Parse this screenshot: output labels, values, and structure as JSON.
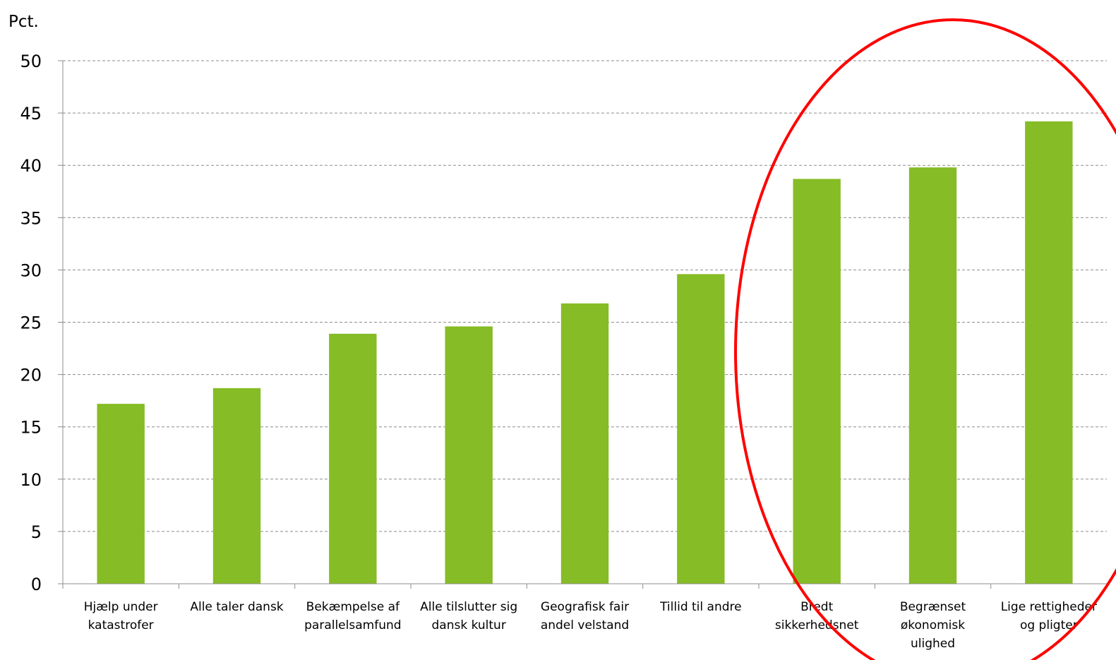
{
  "chart_data": {
    "type": "bar",
    "ylabel": "Pct.",
    "xlabel": "",
    "title": "",
    "ylim": [
      0,
      50
    ],
    "yticks": [
      0,
      5,
      10,
      15,
      20,
      25,
      30,
      35,
      40,
      45,
      50
    ],
    "grid": "horizontal dashed",
    "categories": [
      [
        "Hjælp under",
        "katastrofer"
      ],
      [
        "Alle taler dansk"
      ],
      [
        "Bekæmpelse af",
        "parallelsamfund"
      ],
      [
        "Alle tilslutter sig",
        "dansk kultur"
      ],
      [
        "Geografisk fair",
        "andel velstand"
      ],
      [
        "Tillid til andre"
      ],
      [
        "Bredt",
        "sikkerhedsnet"
      ],
      [
        "Begrænset",
        "økonomisk",
        "ulighed"
      ],
      [
        "Lige rettigheder",
        "og pligter"
      ]
    ],
    "values": [
      17.2,
      18.7,
      23.9,
      24.6,
      26.8,
      29.6,
      38.7,
      39.8,
      44.2
    ],
    "colors": {
      "bar": "#86bc25",
      "grid": "#8c8c8c",
      "axis": "#8c8c8c",
      "highlight": "#ff0000"
    },
    "annotation": {
      "shape": "ellipse",
      "highlights": [
        "Bredt sikkerhedsnet",
        "Begrænset økonomisk ulighed",
        "Lige rettigheder og pligter"
      ]
    }
  }
}
